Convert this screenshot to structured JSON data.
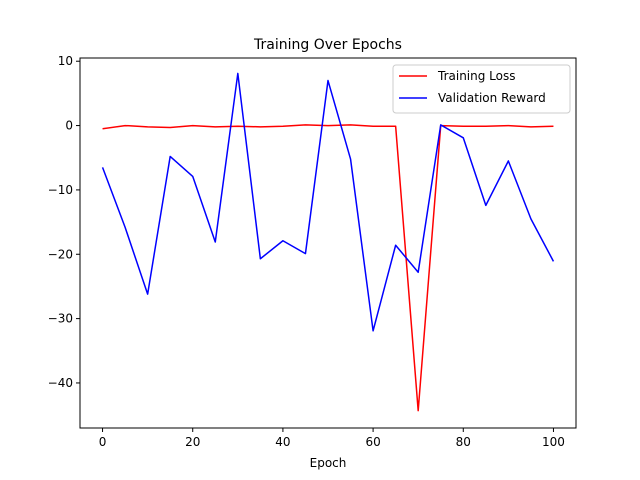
{
  "chart_data": {
    "type": "line",
    "title": "Training Over Epochs",
    "xlabel": "Epoch",
    "ylabel": "",
    "xlim": [
      -5,
      105
    ],
    "ylim": [
      -47,
      10.5
    ],
    "xticks": [
      0,
      20,
      40,
      60,
      80,
      100
    ],
    "yticks": [
      10,
      0,
      -10,
      -20,
      -30,
      -40
    ],
    "ytick_labels": [
      "10",
      "0",
      "−10",
      "−20",
      "−30",
      "−40"
    ],
    "grid": false,
    "legend_position": "top-right",
    "x": [
      0,
      5,
      10,
      15,
      20,
      25,
      30,
      35,
      40,
      45,
      50,
      55,
      60,
      65,
      70,
      75,
      80,
      85,
      90,
      95,
      100
    ],
    "series": [
      {
        "name": "Training Loss",
        "color": "#ff0000",
        "values": [
          -0.5,
          0.0,
          -0.2,
          -0.3,
          0.0,
          -0.2,
          -0.1,
          -0.2,
          -0.1,
          0.1,
          0.0,
          0.1,
          -0.1,
          -0.1,
          -44.3,
          0.0,
          -0.1,
          -0.1,
          0.0,
          -0.2,
          -0.1
        ]
      },
      {
        "name": "Validation Reward",
        "color": "#0000ff",
        "values": [
          -6.5,
          -15.8,
          -26.2,
          -4.8,
          -7.9,
          -18.1,
          8.1,
          -20.7,
          -17.9,
          -19.9,
          7.0,
          -5.2,
          -31.9,
          -18.6,
          -22.8,
          0.1,
          -1.9,
          -12.4,
          -5.5,
          -14.5,
          -21.1
        ]
      }
    ]
  }
}
